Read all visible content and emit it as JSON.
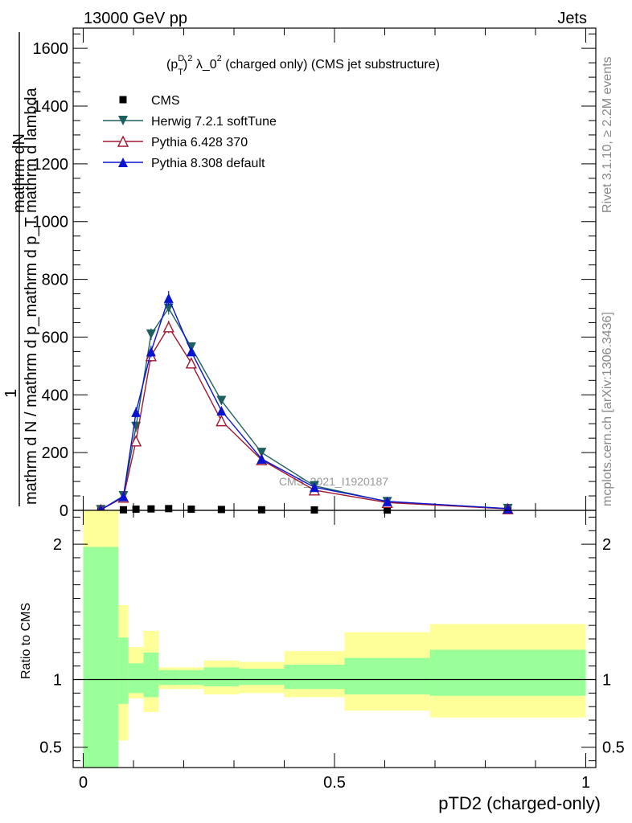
{
  "header": {
    "left": "13000 GeV pp",
    "right": "Jets"
  },
  "side_labels": {
    "rivet": "Rivet 3.1.10, ≥ 2.2M events",
    "mcplots": "mcplots.cern.ch [arXiv:1306.3436]"
  },
  "chart_data": [
    {
      "type": "line",
      "panel": "main",
      "title_parts": {
        "base": "(p",
        "sup": "D",
        "sub": "T",
        "rest": ")",
        "sup2": "2",
        "lambda": " λ_0",
        "sup3": "2",
        "tail": " (charged only) (CMS jet substructure)"
      },
      "ylabel_parts": {
        "top": "mathrm dN",
        "one": "1",
        "bottom": "mathrm d N / mathrm d p_mathrm d p_T mathrm d lambda"
      },
      "watermark": "CMS_2021_I1920187",
      "xlim": [
        -0.02,
        1.02
      ],
      "ylim": [
        0,
        1670
      ],
      "yticks": [
        0,
        200,
        400,
        600,
        800,
        1000,
        1200,
        1400,
        1600
      ],
      "grid": false,
      "legend_position": "top-left",
      "series": [
        {
          "name": "CMS",
          "color": "#000000",
          "marker": "square",
          "x": [
            0.035,
            0.08,
            0.105,
            0.135,
            0.17,
            0.215,
            0.275,
            0.355,
            0.46,
            0.605,
            0.845
          ],
          "y": [
            0.5,
            2,
            4,
            5,
            6,
            4,
            3,
            2,
            1.5,
            1,
            0.5
          ]
        },
        {
          "name": "Herwig 7.2.1 softTune",
          "color": "#1f5f5f",
          "marker": "triangle-down",
          "x": [
            0.035,
            0.08,
            0.105,
            0.135,
            0.17,
            0.215,
            0.275,
            0.355,
            0.46,
            0.605,
            0.845
          ],
          "y": [
            2,
            50,
            290,
            610,
            700,
            565,
            380,
            200,
            85,
            30,
            6
          ],
          "err": [
            0,
            8,
            18,
            20,
            22,
            12,
            8,
            6,
            4,
            2,
            1
          ]
        },
        {
          "name": "Pythia 6.428 370",
          "color": "#a01830",
          "marker": "triangle-up-open",
          "x": [
            0.035,
            0.08,
            0.105,
            0.135,
            0.17,
            0.215,
            0.275,
            0.355,
            0.46,
            0.605,
            0.845
          ],
          "y": [
            2,
            45,
            240,
            535,
            635,
            510,
            310,
            175,
            70,
            27,
            5
          ],
          "err": [
            0,
            8,
            18,
            20,
            22,
            12,
            8,
            6,
            4,
            2,
            1
          ]
        },
        {
          "name": "Pythia 8.308 default",
          "color": "#0a14d0",
          "marker": "triangle-up",
          "x": [
            0.035,
            0.08,
            0.105,
            0.135,
            0.17,
            0.215,
            0.275,
            0.355,
            0.46,
            0.605,
            0.845
          ],
          "y": [
            2,
            48,
            340,
            550,
            735,
            550,
            345,
            178,
            80,
            31,
            6
          ],
          "err": [
            0,
            8,
            18,
            20,
            25,
            12,
            8,
            6,
            4,
            2,
            1
          ]
        }
      ]
    },
    {
      "type": "area",
      "panel": "ratio",
      "ylabel": "Ratio to CMS",
      "xlabel": "pTD2 (charged-only)",
      "xlim": [
        -0.02,
        1.02
      ],
      "ylim": [
        0.35,
        2.25
      ],
      "xticks": [
        0,
        0.5,
        1
      ],
      "xtick_labels": [
        "0",
        "0.5",
        "1"
      ],
      "yticks": [
        0.5,
        1,
        2
      ],
      "ytick_labels": [
        "0.5",
        "1",
        "2"
      ],
      "reference_line": 1,
      "bands": [
        {
          "name": "total",
          "color": "#ffff99",
          "bins": [
            [
              0,
              0.07,
              0.35,
              2.25
            ],
            [
              0.07,
              0.09,
              0.55,
              1.55
            ],
            [
              0.09,
              0.12,
              0.86,
              1.24
            ],
            [
              0.12,
              0.15,
              0.76,
              1.36
            ],
            [
              0.15,
              0.19,
              0.93,
              1.09
            ],
            [
              0.19,
              0.24,
              0.93,
              1.09
            ],
            [
              0.24,
              0.31,
              0.89,
              1.14
            ],
            [
              0.31,
              0.4,
              0.9,
              1.13
            ],
            [
              0.4,
              0.52,
              0.87,
              1.21
            ],
            [
              0.52,
              0.69,
              0.77,
              1.35
            ],
            [
              0.69,
              1.0,
              0.72,
              1.41
            ]
          ]
        },
        {
          "name": "stat",
          "color": "#99ff99",
          "bins": [
            [
              0,
              0.07,
              0.35,
              1.98
            ],
            [
              0.07,
              0.09,
              0.82,
              1.31
            ],
            [
              0.09,
              0.12,
              0.9,
              1.12
            ],
            [
              0.12,
              0.15,
              0.87,
              1.2
            ],
            [
              0.15,
              0.19,
              0.96,
              1.07
            ],
            [
              0.19,
              0.24,
              0.96,
              1.07
            ],
            [
              0.24,
              0.31,
              0.95,
              1.09
            ],
            [
              0.31,
              0.4,
              0.96,
              1.08
            ],
            [
              0.4,
              0.52,
              0.93,
              1.11
            ],
            [
              0.52,
              0.69,
              0.89,
              1.16
            ],
            [
              0.69,
              1.0,
              0.88,
              1.22
            ]
          ]
        }
      ]
    }
  ]
}
